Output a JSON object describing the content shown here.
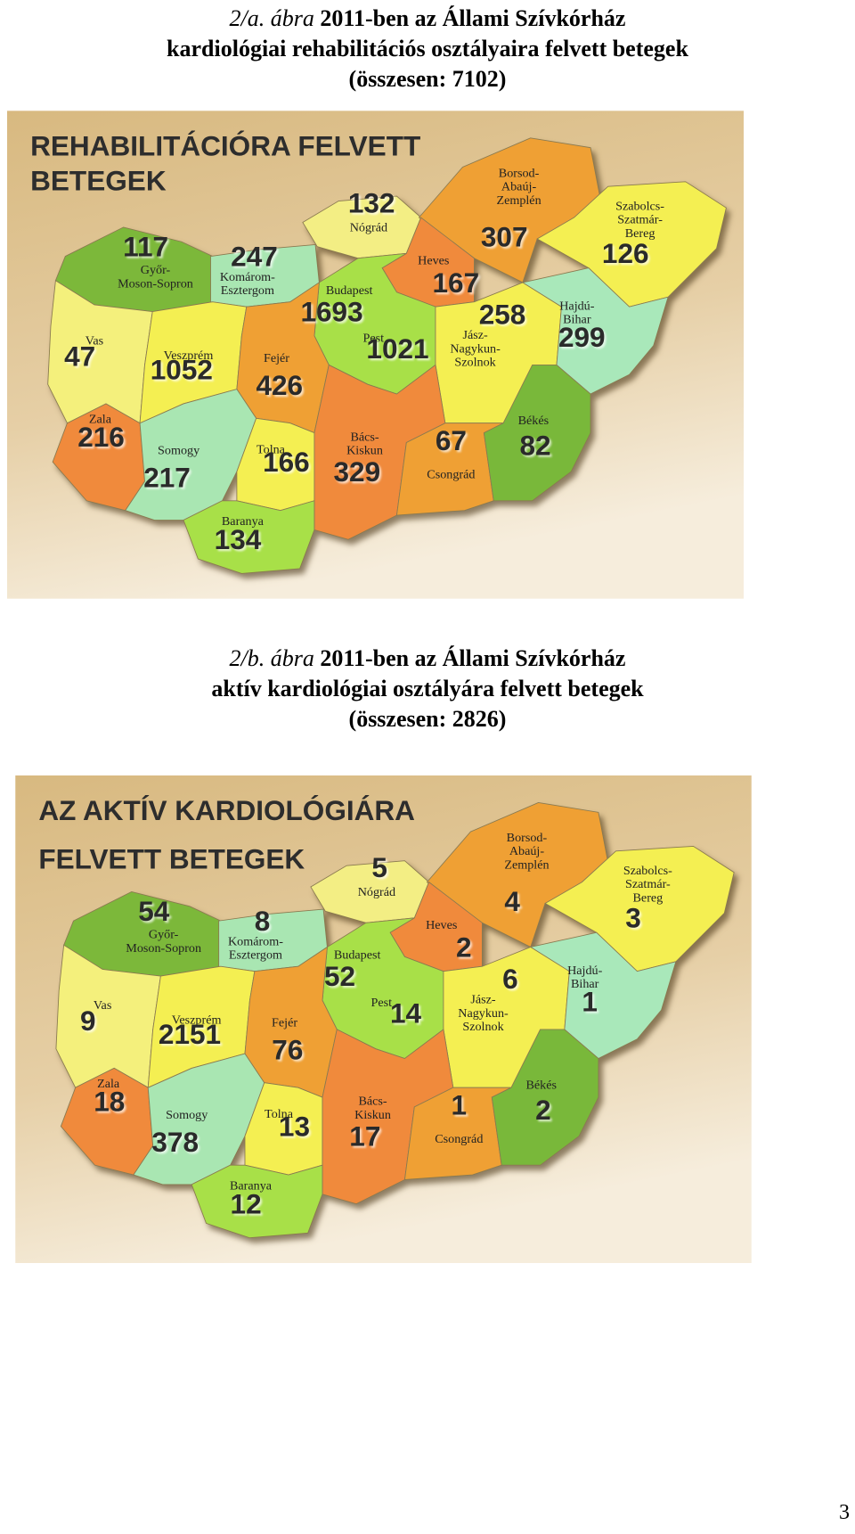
{
  "figures": [
    {
      "caption": {
        "label": "2/a. ábra",
        "lines": [
          "2011-ben az Állami Szívkórház",
          "kardiológiai rehabilitációs osztályaira felvett betegek",
          "(összesen: 7102)"
        ]
      },
      "map": {
        "title": [
          "REHABILITÁCIÓRA FELVETT",
          "BETEGEK"
        ],
        "regions": [
          {
            "name": [
              "Győr-",
              "Moson-Sopron"
            ],
            "value": 117
          },
          {
            "name": [
              "Komárom-",
              "Esztergom"
            ],
            "value": 247
          },
          {
            "name": [
              "Nógrád"
            ],
            "value": 132
          },
          {
            "name": [
              "Borsod-",
              "Abaúj-",
              "Zemplén"
            ],
            "value": 307
          },
          {
            "name": [
              "Szabolcs-",
              "Szatmár-",
              "Bereg"
            ],
            "value": 126
          },
          {
            "name": [
              "Heves"
            ],
            "value": 167
          },
          {
            "name": [
              "Budapest"
            ],
            "value": 1693
          },
          {
            "name": [
              "Pest"
            ],
            "value": 1021
          },
          {
            "name": [
              "Jász-",
              "Nagykun-",
              "Szolnok"
            ],
            "value": 258
          },
          {
            "name": [
              "Hajdú-",
              "Bihar"
            ],
            "value": 299
          },
          {
            "name": [
              "Vas"
            ],
            "value": 47
          },
          {
            "name": [
              "Veszprém"
            ],
            "value": 1052
          },
          {
            "name": [
              "Fejér"
            ],
            "value": 426
          },
          {
            "name": [
              "Zala"
            ],
            "value": 216
          },
          {
            "name": [
              "Somogy"
            ],
            "value": 217
          },
          {
            "name": [
              "Tolna"
            ],
            "value": 166
          },
          {
            "name": [
              "Bács-",
              "Kiskun"
            ],
            "value": 329
          },
          {
            "name": [
              "Csongrád"
            ],
            "value": 67
          },
          {
            "name": [
              "Békés"
            ],
            "value": 82
          },
          {
            "name": [
              "Baranya"
            ],
            "value": 134
          }
        ]
      }
    },
    {
      "caption": {
        "label": "2/b. ábra",
        "lines": [
          "2011-ben az Állami Szívkórház",
          "aktív kardiológiai osztályára felvett betegek",
          "(összesen: 2826)"
        ]
      },
      "map": {
        "title": [
          "AZ AKTÍV KARDIOLÓGIÁRA",
          "FELVETT BETEGEK"
        ],
        "regions": [
          {
            "name": [
              "Győr-",
              "Moson-Sopron"
            ],
            "value": 54
          },
          {
            "name": [
              "Komárom-",
              "Esztergom"
            ],
            "value": 8
          },
          {
            "name": [
              "Nógrád"
            ],
            "value": 5
          },
          {
            "name": [
              "Borsod-",
              "Abaúj-",
              "Zemplén"
            ],
            "value": 4
          },
          {
            "name": [
              "Szabolcs-",
              "Szatmár-",
              "Bereg"
            ],
            "value": 3
          },
          {
            "name": [
              "Heves"
            ],
            "value": 2
          },
          {
            "name": [
              "Budapest"
            ],
            "value": 52
          },
          {
            "name": [
              "Pest"
            ],
            "value": 14
          },
          {
            "name": [
              "Jász-",
              "Nagykun-",
              "Szolnok"
            ],
            "value": 6
          },
          {
            "name": [
              "Hajdú-",
              "Bihar"
            ],
            "value": 1
          },
          {
            "name": [
              "Vas"
            ],
            "value": 9
          },
          {
            "name": [
              "Veszprém"
            ],
            "value": 2151
          },
          {
            "name": [
              "Fejér"
            ],
            "value": 76
          },
          {
            "name": [
              "Zala"
            ],
            "value": 18
          },
          {
            "name": [
              "Somogy"
            ],
            "value": 378
          },
          {
            "name": [
              "Tolna"
            ],
            "value": 13
          },
          {
            "name": [
              "Bács-",
              "Kiskun"
            ],
            "value": 17
          },
          {
            "name": [
              "Csongrád"
            ],
            "value": 1
          },
          {
            "name": [
              "Békés"
            ],
            "value": 2
          },
          {
            "name": [
              "Baranya"
            ],
            "value": 12
          }
        ]
      }
    }
  ],
  "page_number": "3"
}
